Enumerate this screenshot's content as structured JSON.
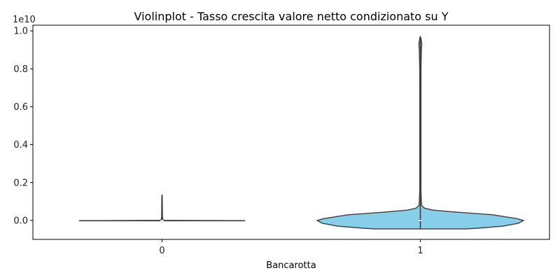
{
  "chart_data": {
    "type": "violin",
    "title": "Violinplot - Tasso crescita valore netto condizionato su Y",
    "xlabel": "Bancarotta",
    "ylabel": "",
    "y_offset_label": "1e10",
    "y_scale": 10000000000,
    "categories": [
      "0",
      "1"
    ],
    "ylim": [
      -0.1,
      1.03
    ],
    "yticks": [
      0.0,
      0.2,
      0.4,
      0.6,
      0.8,
      1.0
    ],
    "ytick_labels": [
      "0.0",
      "0.2",
      "0.4",
      "0.6",
      "0.8",
      "1.0"
    ],
    "grid": false,
    "legend": "none",
    "colors": {
      "violin_fill": "#87ceeb",
      "violin_edge": "#3f3f3f",
      "median": "#ffffff",
      "axis": "#000000"
    },
    "series": [
      {
        "category": "0",
        "max": 0.133,
        "min": -0.002,
        "median": 0.0,
        "q1": 0.0,
        "q3": 0.0,
        "density": [
          {
            "y": -0.002,
            "w": 0.8
          },
          {
            "y": -0.001,
            "w": 0.8
          },
          {
            "y": 0.0,
            "w": 0.3
          },
          {
            "y": 0.001,
            "w": 0.02
          },
          {
            "y": 0.005,
            "w": 0.008
          },
          {
            "y": 0.02,
            "w": 0.004
          },
          {
            "y": 0.133,
            "w": 0.002
          }
        ]
      },
      {
        "category": "1",
        "max": 0.97,
        "min": -0.045,
        "median": 0.0,
        "q1": -0.005,
        "q3": 0.005,
        "density": [
          {
            "y": -0.045,
            "w": 0.44
          },
          {
            "y": -0.04,
            "w": 0.58
          },
          {
            "y": -0.03,
            "w": 0.8
          },
          {
            "y": -0.015,
            "w": 0.95
          },
          {
            "y": 0.0,
            "w": 1.0
          },
          {
            "y": 0.01,
            "w": 0.93
          },
          {
            "y": 0.03,
            "w": 0.7
          },
          {
            "y": 0.045,
            "w": 0.32
          },
          {
            "y": 0.055,
            "w": 0.12
          },
          {
            "y": 0.065,
            "w": 0.04
          },
          {
            "y": 0.08,
            "w": 0.012
          },
          {
            "y": 0.15,
            "w": 0.006
          },
          {
            "y": 0.8,
            "w": 0.006
          },
          {
            "y": 0.9,
            "w": 0.01
          },
          {
            "y": 0.93,
            "w": 0.014
          },
          {
            "y": 0.96,
            "w": 0.006
          },
          {
            "y": 0.97,
            "w": 0.001
          }
        ]
      }
    ]
  }
}
